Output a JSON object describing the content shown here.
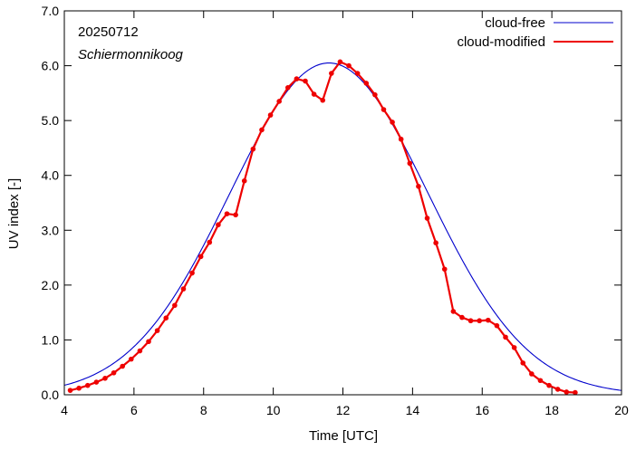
{
  "chart_data": {
    "type": "line",
    "annotations": [
      "20250712",
      "Schiermonnikoog"
    ],
    "xlabel": "Time  [UTC]",
    "ylabel": "UV index  [-]",
    "xlim": [
      4,
      20
    ],
    "ylim": [
      0,
      7
    ],
    "xticks": [
      4,
      6,
      8,
      10,
      12,
      14,
      16,
      18,
      20
    ],
    "yticks": [
      0,
      1,
      2,
      3,
      4,
      5,
      6,
      7
    ],
    "xtick_labels": [
      "4",
      "6",
      "8",
      "10",
      "12",
      "14",
      "16",
      "18",
      "20"
    ],
    "ytick_labels": [
      "0.0",
      "1.0",
      "2.0",
      "3.0",
      "4.0",
      "5.0",
      "6.0",
      "7.0"
    ],
    "legend_position": "top-right",
    "grid": false,
    "series": [
      {
        "name": "cloud-free",
        "color": "#0000cc",
        "marker": "none",
        "curve": {
          "peak_time": 11.6,
          "peak_value": 6.05,
          "sigma_hours": 2.85
        }
      },
      {
        "name": "cloud-modified",
        "color": "#ee0000",
        "marker": "dot",
        "x": [
          4.17,
          4.42,
          4.67,
          4.92,
          5.17,
          5.42,
          5.67,
          5.92,
          6.17,
          6.42,
          6.67,
          6.92,
          7.17,
          7.42,
          7.67,
          7.92,
          8.17,
          8.42,
          8.67,
          8.92,
          9.17,
          9.42,
          9.67,
          9.92,
          10.17,
          10.42,
          10.67,
          10.92,
          11.17,
          11.42,
          11.67,
          11.92,
          12.17,
          12.42,
          12.67,
          12.92,
          13.17,
          13.42,
          13.67,
          13.92,
          14.17,
          14.42,
          14.67,
          14.92,
          15.17,
          15.42,
          15.67,
          15.92,
          16.17,
          16.42,
          16.67,
          16.92,
          17.17,
          17.42,
          17.67,
          17.92,
          18.17,
          18.42,
          18.67
        ],
        "y": [
          0.08,
          0.12,
          0.17,
          0.23,
          0.3,
          0.4,
          0.52,
          0.65,
          0.8,
          0.97,
          1.17,
          1.4,
          1.63,
          1.93,
          2.22,
          2.52,
          2.78,
          3.1,
          3.3,
          3.28,
          3.9,
          4.48,
          4.83,
          5.1,
          5.35,
          5.6,
          5.76,
          5.72,
          5.48,
          5.37,
          5.86,
          6.07,
          6.0,
          5.86,
          5.68,
          5.47,
          5.2,
          4.97,
          4.66,
          4.22,
          3.8,
          3.22,
          2.77,
          2.29,
          1.52,
          1.41,
          1.35,
          1.35,
          1.36,
          1.26,
          1.05,
          0.86,
          0.58,
          0.38,
          0.26,
          0.17,
          0.1,
          0.05,
          0.04
        ]
      }
    ]
  }
}
